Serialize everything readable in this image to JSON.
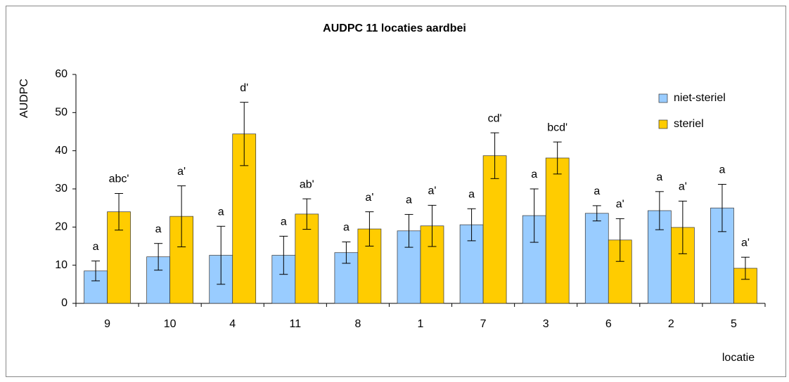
{
  "chart_data": {
    "type": "bar",
    "title": "AUDPC 11 locaties aardbei",
    "y_label": "AUDPC",
    "x_label": "locatie",
    "categories": [
      "9",
      "10",
      "4",
      "11",
      "8",
      "1",
      "7",
      "3",
      "6",
      "2",
      "5"
    ],
    "series": [
      {
        "name": "niet-steriel",
        "color": "#99ccff",
        "values": [
          8.5,
          12.2,
          12.6,
          12.6,
          13.3,
          19,
          20.6,
          23,
          23.6,
          24.3,
          25
        ],
        "errors": [
          2.6,
          3.5,
          7.6,
          5,
          2.8,
          4.3,
          4.2,
          7,
          2,
          5,
          6.2
        ],
        "letters": [
          "a",
          "a",
          "a",
          "a",
          "a",
          "a",
          "a",
          "a",
          "a",
          "a",
          "a"
        ]
      },
      {
        "name": "steriel",
        "color": "#ffcc00",
        "values": [
          24,
          22.8,
          44.4,
          23.4,
          19.5,
          20.3,
          38.7,
          38.1,
          16.6,
          19.9,
          9.2
        ],
        "errors": [
          4.8,
          8,
          8.3,
          4,
          4.5,
          5.4,
          6,
          4.2,
          5.6,
          6.9,
          2.9
        ],
        "letters": [
          "abc'",
          "a'",
          "d'",
          "ab'",
          "a'",
          "a'",
          "cd'",
          "bcd'",
          "a'",
          "a'",
          "a'"
        ]
      }
    ],
    "ylim": [
      0,
      60
    ],
    "yticks": [
      0,
      10,
      20,
      30,
      40,
      50,
      60
    ],
    "grid": false,
    "legend": "top-right"
  }
}
